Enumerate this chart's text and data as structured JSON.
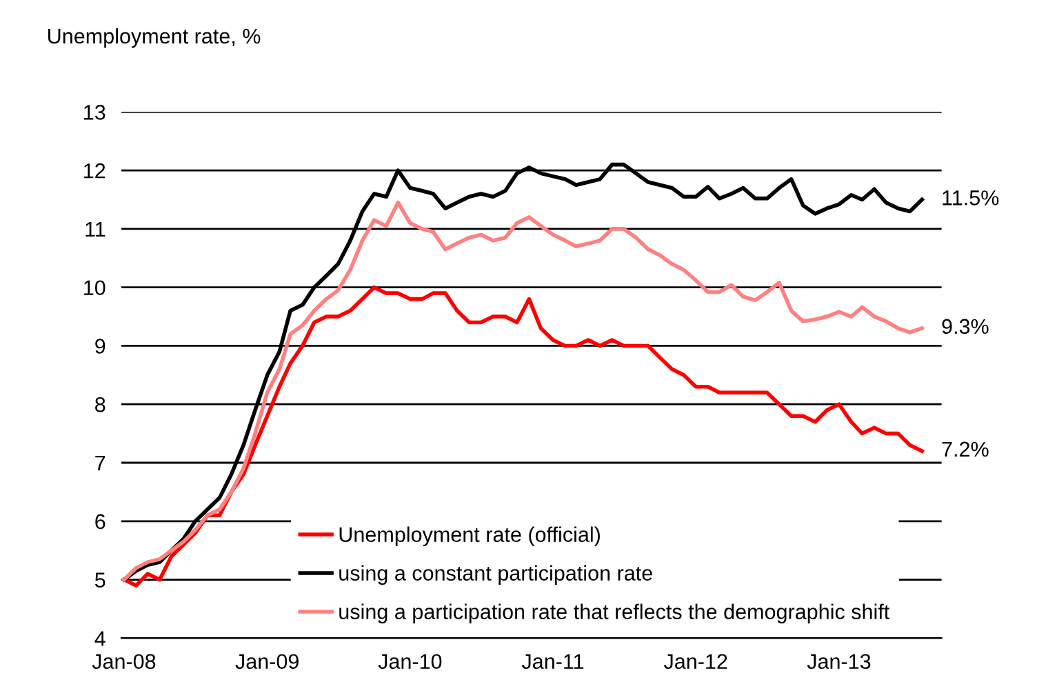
{
  "chart_data": {
    "type": "line",
    "ylabel": "Unemployment rate, %",
    "x": [
      "2008-01",
      "2008-02",
      "2008-03",
      "2008-04",
      "2008-05",
      "2008-06",
      "2008-07",
      "2008-08",
      "2008-09",
      "2008-10",
      "2008-11",
      "2008-12",
      "2009-01",
      "2009-02",
      "2009-03",
      "2009-04",
      "2009-05",
      "2009-06",
      "2009-07",
      "2009-08",
      "2009-09",
      "2009-10",
      "2009-11",
      "2009-12",
      "2010-01",
      "2010-02",
      "2010-03",
      "2010-04",
      "2010-05",
      "2010-06",
      "2010-07",
      "2010-08",
      "2010-09",
      "2010-10",
      "2010-11",
      "2010-12",
      "2011-01",
      "2011-02",
      "2011-03",
      "2011-04",
      "2011-05",
      "2011-06",
      "2011-07",
      "2011-08",
      "2011-09",
      "2011-10",
      "2011-11",
      "2011-12",
      "2012-01",
      "2012-02",
      "2012-03",
      "2012-04",
      "2012-05",
      "2012-06",
      "2012-07",
      "2012-08",
      "2012-09",
      "2012-10",
      "2012-11",
      "2012-12",
      "2013-01",
      "2013-02",
      "2013-03",
      "2013-04",
      "2013-05",
      "2013-06",
      "2013-07",
      "2013-08"
    ],
    "series": [
      {
        "name": "Unemployment rate (official)",
        "color": "#ff0000",
        "values": [
          5.0,
          4.9,
          5.1,
          5.0,
          5.4,
          5.6,
          5.8,
          6.1,
          6.1,
          6.5,
          6.8,
          7.3,
          7.8,
          8.3,
          8.7,
          9.0,
          9.4,
          9.5,
          9.5,
          9.6,
          9.8,
          10.0,
          9.9,
          9.9,
          9.8,
          9.8,
          9.9,
          9.9,
          9.6,
          9.4,
          9.4,
          9.5,
          9.5,
          9.4,
          9.8,
          9.3,
          9.1,
          9.0,
          9.0,
          9.1,
          9.0,
          9.1,
          9.0,
          9.0,
          9.0,
          8.8,
          8.6,
          8.5,
          8.3,
          8.3,
          8.2,
          8.2,
          8.2,
          8.2,
          8.2,
          8.0,
          7.8,
          7.8,
          7.7,
          7.9,
          8.0,
          7.7,
          7.5,
          7.6,
          7.5,
          7.5,
          7.3,
          7.2
        ]
      },
      {
        "name": "using a constant participation rate",
        "color": "#000000",
        "values": [
          5.0,
          5.15,
          5.25,
          5.3,
          5.5,
          5.7,
          6.0,
          6.2,
          6.4,
          6.8,
          7.3,
          7.9,
          8.5,
          8.9,
          9.6,
          9.7,
          10.0,
          10.2,
          10.4,
          10.8,
          11.3,
          11.6,
          11.55,
          12.0,
          11.7,
          11.65,
          11.6,
          11.35,
          11.45,
          11.55,
          11.6,
          11.55,
          11.65,
          11.95,
          12.05,
          11.95,
          11.9,
          11.85,
          11.75,
          11.8,
          11.85,
          12.1,
          12.1,
          11.95,
          11.8,
          11.75,
          11.7,
          11.55,
          11.55,
          11.72,
          11.52,
          11.6,
          11.7,
          11.52,
          11.52,
          11.7,
          11.85,
          11.4,
          11.26,
          11.35,
          11.42,
          11.58,
          11.5,
          11.68,
          11.45,
          11.35,
          11.3,
          11.5
        ]
      },
      {
        "name": "using a participation rate that reflects the demographic shift",
        "color": "#ff8080",
        "values": [
          5.0,
          5.2,
          5.3,
          5.35,
          5.5,
          5.65,
          5.85,
          6.1,
          6.2,
          6.5,
          6.9,
          7.5,
          8.2,
          8.6,
          9.2,
          9.35,
          9.6,
          9.8,
          9.95,
          10.3,
          10.8,
          11.15,
          11.05,
          11.45,
          11.1,
          11.0,
          10.95,
          10.65,
          10.75,
          10.85,
          10.9,
          10.8,
          10.85,
          11.1,
          11.2,
          11.05,
          10.9,
          10.8,
          10.7,
          10.75,
          10.8,
          11.0,
          11.0,
          10.85,
          10.65,
          10.55,
          10.4,
          10.3,
          10.12,
          9.92,
          9.92,
          10.04,
          9.84,
          9.78,
          9.92,
          10.08,
          9.6,
          9.42,
          9.45,
          9.5,
          9.58,
          9.5,
          9.66,
          9.5,
          9.42,
          9.3,
          9.23,
          9.3
        ]
      }
    ],
    "annotations": [
      {
        "text": "11.5%",
        "x": "2013-08",
        "y": 11.5
      },
      {
        "text": "9.3%",
        "x": "2013-08",
        "y": 9.3
      },
      {
        "text": "7.2%",
        "x": "2013-08",
        "y": 7.2
      }
    ],
    "xlim": [
      "2007-12-25",
      "2013-09-20"
    ],
    "xticks": [
      {
        "value": "2008-01",
        "label": "Jan-08"
      },
      {
        "value": "2009-01",
        "label": "Jan-09"
      },
      {
        "value": "2010-01",
        "label": "Jan-10"
      },
      {
        "value": "2011-01",
        "label": "Jan-11"
      },
      {
        "value": "2012-01",
        "label": "Jan-12"
      },
      {
        "value": "2013-01",
        "label": "Jan-13"
      }
    ],
    "ylim": [
      4,
      13
    ],
    "yticks": [
      4,
      5,
      6,
      7,
      8,
      9,
      10,
      11,
      12,
      13
    ],
    "grid": "y",
    "legend": "bottom",
    "line_style": "solid",
    "marker": "none"
  }
}
